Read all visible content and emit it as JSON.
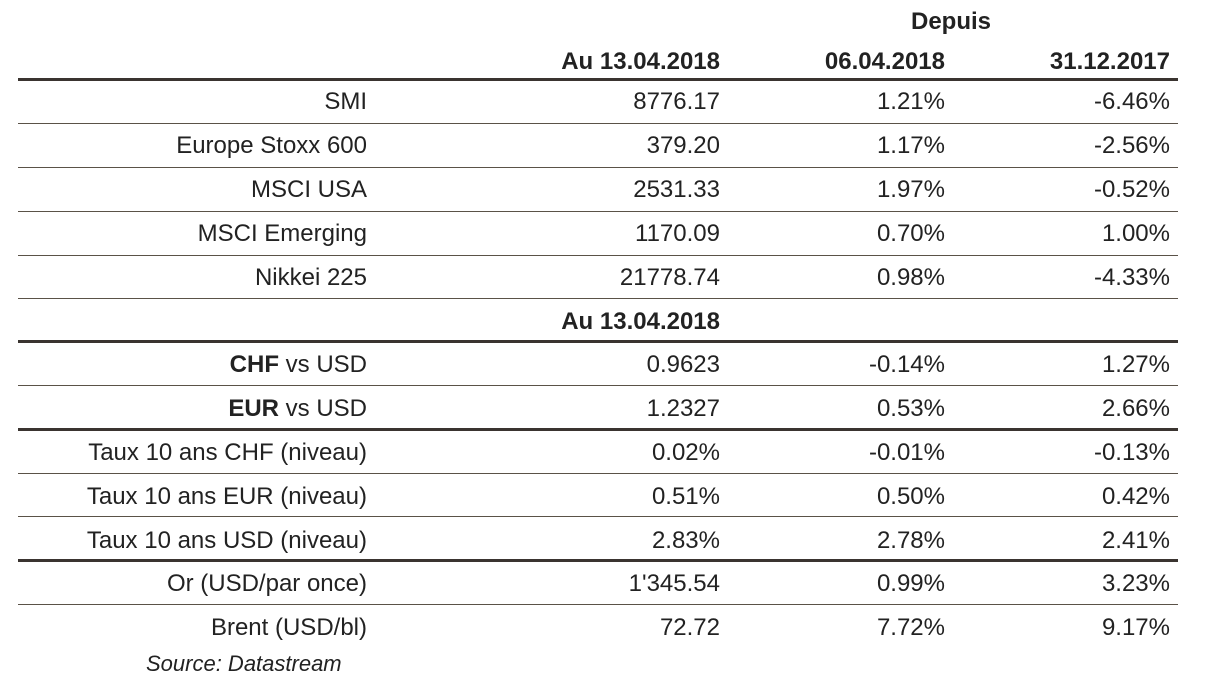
{
  "header": {
    "depuis": "Depuis",
    "col1": "Au 13.04.2018",
    "col2": "06.04.2018",
    "col3": "31.12.2017"
  },
  "indices": [
    {
      "name": "SMI",
      "value": "8776.17",
      "since_week": "1.21%",
      "since_year": "-6.46%"
    },
    {
      "name": "Europe Stoxx 600",
      "value": "379.20",
      "since_week": "1.17%",
      "since_year": "-2.56%"
    },
    {
      "name": "MSCI USA",
      "value": "2531.33",
      "since_week": "1.97%",
      "since_year": "-0.52%"
    },
    {
      "name": "MSCI Emerging",
      "value": "1170.09",
      "since_week": "0.70%",
      "since_year": "1.00%"
    },
    {
      "name": "Nikkei 225",
      "value": "21778.74",
      "since_week": "0.98%",
      "since_year": "-4.33%"
    }
  ],
  "section2": {
    "col1": "Au 13.04.2018"
  },
  "fx": [
    {
      "currency": "CHF",
      "suffix": " vs USD",
      "value": "0.9623",
      "since_week": "-0.14%",
      "since_year": "1.27%"
    },
    {
      "currency": "EUR",
      "suffix": " vs USD",
      "value": "1.2327",
      "since_week": "0.53%",
      "since_year": "2.66%"
    }
  ],
  "rates": [
    {
      "name": "Taux 10 ans CHF (niveau)",
      "value": "0.02%",
      "since_week": "-0.01%",
      "since_year": "-0.13%"
    },
    {
      "name": "Taux 10 ans EUR (niveau)",
      "value": "0.51%",
      "since_week": "0.50%",
      "since_year": "0.42%"
    },
    {
      "name": "Taux 10 ans USD (niveau)",
      "value": "2.83%",
      "since_week": "2.78%",
      "since_year": "2.41%"
    }
  ],
  "commodities": [
    {
      "name": "Or (USD/par once)",
      "value": "1'345.54",
      "since_week": "0.99%",
      "since_year": "3.23%"
    },
    {
      "name": "Brent (USD/bl)",
      "value": "72.72",
      "since_week": "7.72%",
      "since_year": "9.17%"
    }
  ],
  "source": "Source: Datastream"
}
